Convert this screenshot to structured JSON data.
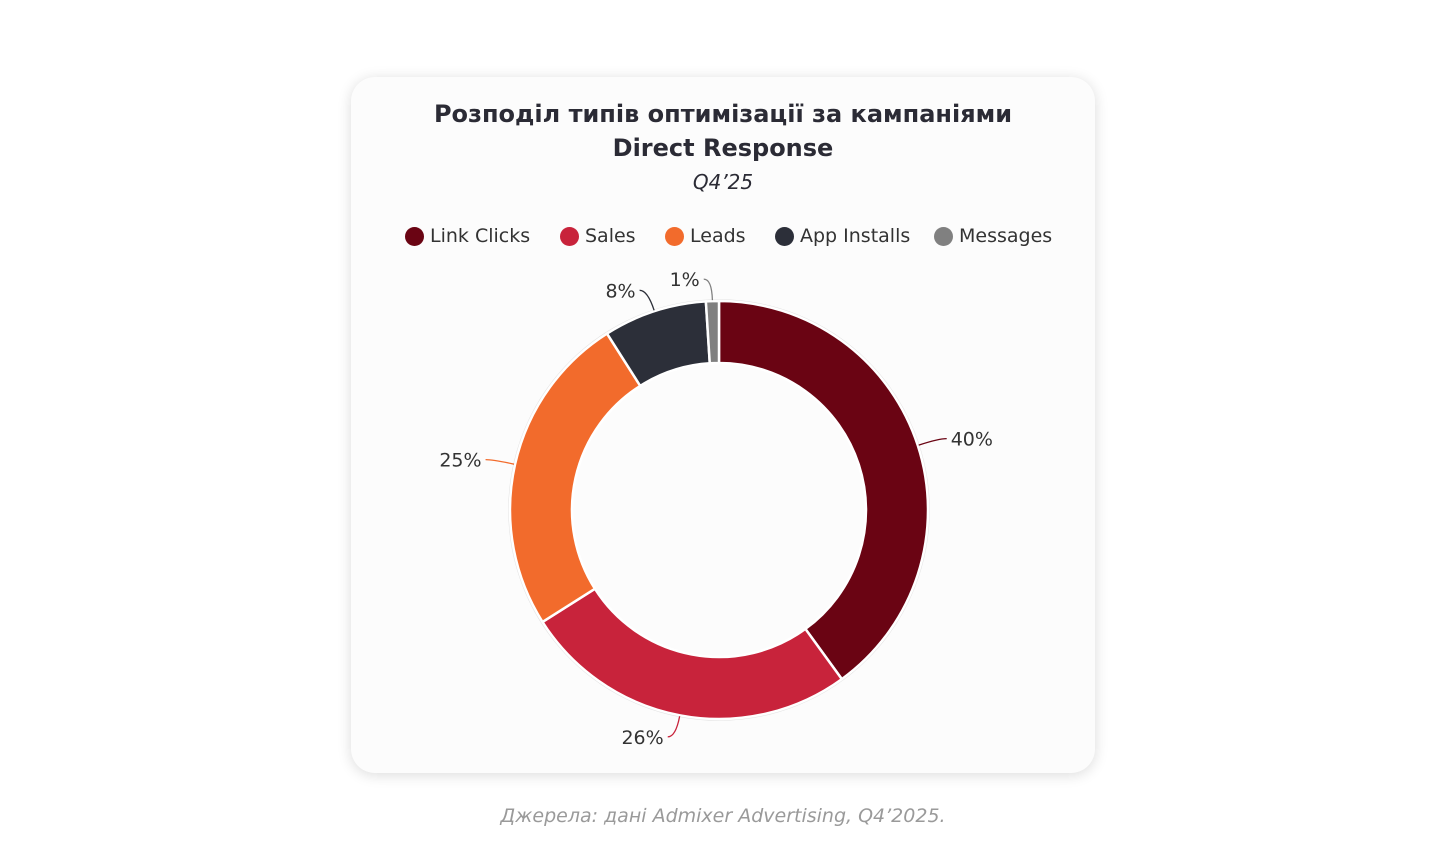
{
  "chart_data": {
    "type": "pie",
    "variant": "donut",
    "title_lines": [
      "Розподіл типів оптимізації за кампаніями",
      "Direct Response"
    ],
    "subtitle": "Q4’25",
    "legend_position": "top",
    "categories": [
      "Link Clicks",
      "Sales",
      "Leads",
      "App Installs",
      "Messages"
    ],
    "values": [
      40,
      26,
      25,
      8,
      1
    ],
    "value_labels": [
      "40%",
      "26%",
      "25%",
      "8%",
      "1%"
    ],
    "unit": "%",
    "colors": [
      "#6a0413",
      "#c8233b",
      "#f26b2c",
      "#2c2f39",
      "#808080"
    ]
  },
  "caption": "Джерела: дані Admixer Advertising, Q4’2025."
}
